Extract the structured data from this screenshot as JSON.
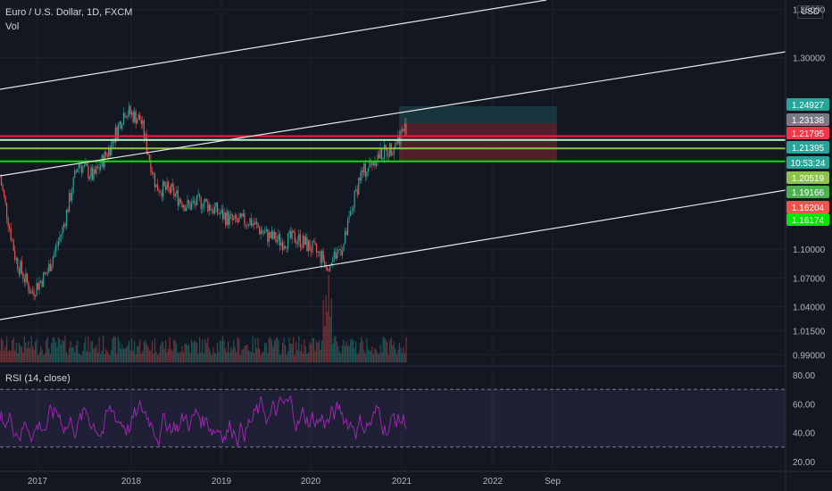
{
  "header": {
    "symbol_title": "Euro / U.S. Dollar, 1D, FXCM",
    "volume_label": "Vol",
    "currency_label": "USD"
  },
  "price_axis": {
    "ticks": [
      "1.35000",
      "1.30000",
      "1.10000",
      "1.07000",
      "1.04000",
      "1.01500",
      "0.99000"
    ]
  },
  "price_labels": [
    {
      "text": "1.24927",
      "value": 1.24927,
      "color": "#26a69a"
    },
    {
      "text": "1.23138",
      "value": 1.23138,
      "color": "#787b86"
    },
    {
      "text": "1.21795",
      "value": 1.21795,
      "color": "#f23645"
    },
    {
      "text": "1.21395",
      "value": 1.21395,
      "color": "#26a69a"
    },
    {
      "text": "10:53:24",
      "value": null,
      "color": "#26a69a"
    },
    {
      "text": "1.20519",
      "value": 1.20519,
      "color": "#8bc34a"
    },
    {
      "text": "1.19166",
      "value": 1.19166,
      "color": "#4caf50"
    },
    {
      "text": "1.16204",
      "value": 1.16204,
      "color": "#ef5350"
    },
    {
      "text": "1.16174",
      "value": 1.16174,
      "color": "#00e600"
    }
  ],
  "rsi": {
    "label": "RSI (14, close)",
    "ticks": [
      "80.00",
      "60.00",
      "40.00",
      "20.00"
    ],
    "upper_band": 70,
    "lower_band": 30,
    "line_color": "#9c27b0"
  },
  "time_axis": {
    "ticks": [
      "2017",
      "2018",
      "2019",
      "2020",
      "2021",
      "2022",
      "Sep"
    ]
  },
  "colors": {
    "background": "#131722",
    "up": "#26a69a",
    "down": "#ef5350",
    "red_line": "#ff1744",
    "green_line": "#00e600",
    "channel": "#e6e6e6"
  },
  "chart_data": {
    "type": "candlestick",
    "title": "Euro / U.S. Dollar, 1D, FXCM",
    "x": [
      "2016-10",
      "2017-01",
      "2017-03",
      "2017-05",
      "2017-07",
      "2017-09",
      "2017-11",
      "2018-01",
      "2018-02",
      "2018-04",
      "2018-06",
      "2018-08",
      "2018-10",
      "2018-12",
      "2019-02",
      "2019-04",
      "2019-06",
      "2019-08",
      "2019-10",
      "2019-12",
      "2020-02",
      "2020-03",
      "2020-05",
      "2020-07",
      "2020-09",
      "2020-11",
      "2021-01"
    ],
    "close": [
      1.175,
      1.09,
      1.055,
      1.075,
      1.12,
      1.19,
      1.175,
      1.205,
      1.245,
      1.235,
      1.165,
      1.16,
      1.145,
      1.15,
      1.138,
      1.128,
      1.13,
      1.115,
      1.108,
      1.112,
      1.1,
      1.085,
      1.105,
      1.175,
      1.195,
      1.205,
      1.228
    ],
    "price_axis_range": [
      0.98,
      1.36
    ],
    "horizontal_levels": [
      {
        "value": 1.21795,
        "color": "#ff1744"
      },
      {
        "value": 1.21395,
        "color": "#b9f6ca"
      },
      {
        "value": 1.20519,
        "color": "#8bc34a"
      },
      {
        "value": 1.19166,
        "color": "#00e600"
      }
    ],
    "position_tool": {
      "entry": 1.23138,
      "target": 1.24927,
      "stop": 1.19166
    },
    "rsi": {
      "period": 14,
      "upper": 70,
      "lower": 30,
      "range": [
        15,
        85
      ]
    },
    "volume_shown": true
  }
}
